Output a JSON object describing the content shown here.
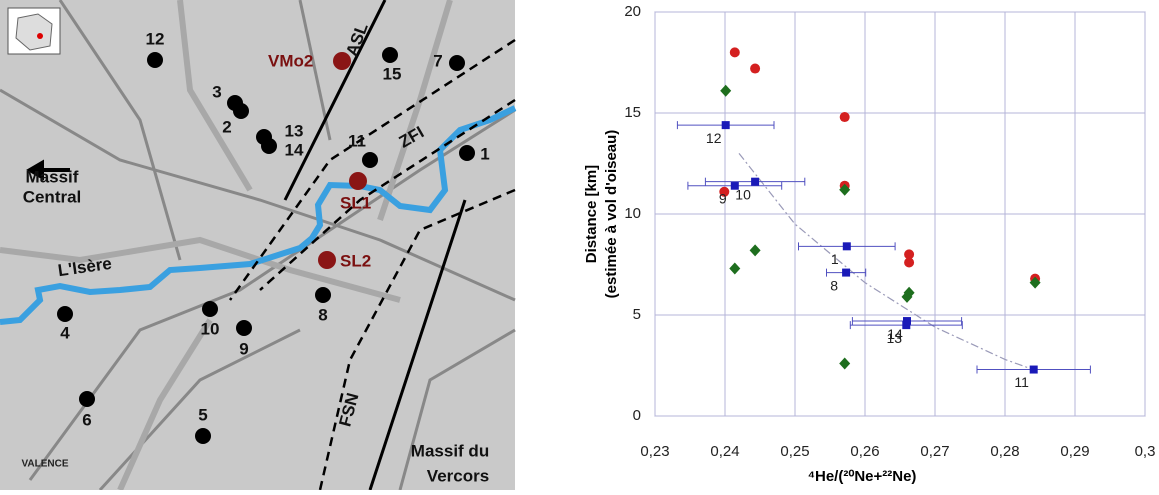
{
  "map": {
    "points": [
      "12",
      "3",
      "2",
      "13",
      "14",
      "15",
      "7",
      "11",
      "1",
      "8",
      "10",
      "9",
      "4",
      "6",
      "5"
    ],
    "sites": [
      "VMo2",
      "SL1",
      "SL2"
    ],
    "faults": [
      "ASL",
      "ZFI",
      "FSN"
    ],
    "river": "L'Isère",
    "massif_central": [
      "Massif",
      "Central"
    ],
    "massif_vercors": [
      "Massif du",
      "Vercors"
    ],
    "town": "VALENCE"
  },
  "chart_data": {
    "type": "scatter",
    "y_label": [
      "Distance [km]",
      "(estimée à vol d'oiseau)"
    ],
    "x_label": "⁴He/(²⁰Ne+²²Ne)",
    "xlim": [
      0.23,
      0.3
    ],
    "xticks": [
      {
        "value": 0.23,
        "label": "0,23"
      },
      {
        "value": 0.24,
        "label": "0,24"
      },
      {
        "value": 0.25,
        "label": "0,25"
      },
      {
        "value": 0.26,
        "label": "0,26"
      },
      {
        "value": 0.27,
        "label": "0,27"
      },
      {
        "value": 0.28,
        "label": "0,28"
      },
      {
        "value": 0.29,
        "label": "0,29"
      },
      {
        "value": 0.3,
        "label": "0,3"
      }
    ],
    "ylim": [
      0,
      20
    ],
    "yticks": [
      0,
      5,
      10,
      15,
      20
    ],
    "grid": true,
    "series": [
      {
        "marker": "line",
        "color": "#9a9ab8",
        "x": [
          0.242,
          0.25,
          0.26,
          0.27,
          0.28,
          0.284
        ],
        "values": [
          13,
          9.5,
          6.6,
          4.4,
          2.8,
          2.3
        ]
      },
      {
        "marker": "circle",
        "color": "#d42020",
        "x": [
          0.2414,
          0.2443,
          0.2571,
          0.2399,
          0.2571,
          0.2663,
          0.2663,
          0.2843
        ],
        "values": [
          18.0,
          17.2,
          14.8,
          11.1,
          11.4,
          8.0,
          7.6,
          6.8
        ]
      },
      {
        "marker": "diamond",
        "color": "#1e6e1e",
        "x": [
          0.2401,
          0.2571,
          0.2443,
          0.2414,
          0.2663,
          0.266,
          0.2571,
          0.2843
        ],
        "values": [
          16.1,
          11.2,
          8.2,
          7.3,
          6.1,
          5.9,
          2.6,
          6.6
        ]
      },
      {
        "marker": "square",
        "color": "#1a1ab8",
        "x": [
          0.2401,
          0.2414,
          0.2443,
          0.2574,
          0.2573,
          0.266,
          0.2659,
          0.2841
        ],
        "values": [
          14.4,
          11.4,
          11.6,
          8.4,
          7.1,
          4.7,
          4.5,
          2.3
        ],
        "xerr": [
          0.0069,
          0.0067,
          0.0071,
          0.0069,
          0.0028,
          0.0078,
          0.008,
          0.0081
        ],
        "labels": [
          "12",
          "9",
          "10",
          "1",
          "8",
          "14",
          "13",
          "11"
        ]
      }
    ]
  }
}
